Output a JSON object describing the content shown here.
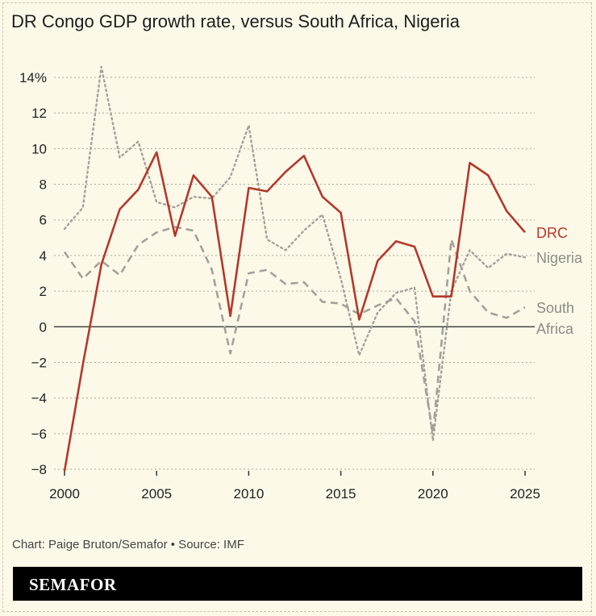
{
  "chart_data": {
    "type": "line",
    "title": "DR Congo GDP growth rate, versus South Africa, Nigeria",
    "xlabel": "",
    "ylabel": "",
    "xlim": [
      2000,
      2025
    ],
    "ylim": [
      -8,
      14
    ],
    "y_ticks": [
      {
        "v": 14,
        "label": "14%"
      },
      {
        "v": 12,
        "label": "12"
      },
      {
        "v": 10,
        "label": "10"
      },
      {
        "v": 8,
        "label": "8"
      },
      {
        "v": 6,
        "label": "6"
      },
      {
        "v": 4,
        "label": "4"
      },
      {
        "v": 2,
        "label": "2"
      },
      {
        "v": 0,
        "label": "0"
      },
      {
        "v": -2,
        "label": "−2"
      },
      {
        "v": -4,
        "label": "−4"
      },
      {
        "v": -6,
        "label": "−6"
      },
      {
        "v": -8,
        "label": "−8"
      }
    ],
    "x_ticks": [
      {
        "v": 2000,
        "label": "2000"
      },
      {
        "v": 2005,
        "label": "2005"
      },
      {
        "v": 2010,
        "label": "2010"
      },
      {
        "v": 2015,
        "label": "2015"
      },
      {
        "v": 2020,
        "label": "2020"
      },
      {
        "v": 2025,
        "label": "2025"
      }
    ],
    "grid": true,
    "x": [
      2000,
      2001,
      2002,
      2003,
      2004,
      2005,
      2006,
      2007,
      2008,
      2009,
      2010,
      2011,
      2012,
      2013,
      2014,
      2015,
      2016,
      2017,
      2018,
      2019,
      2020,
      2021,
      2022,
      2023,
      2024,
      2025
    ],
    "series": [
      {
        "name": "DRC",
        "label_lines": [
          "DRC"
        ],
        "color": "#b3392a",
        "style": "solid",
        "values": [
          -8.1,
          -2.1,
          3.5,
          6.6,
          7.7,
          9.8,
          5.1,
          8.5,
          7.3,
          0.6,
          7.8,
          7.6,
          8.7,
          9.6,
          7.3,
          6.4,
          0.4,
          3.7,
          4.8,
          4.5,
          1.7,
          1.7,
          9.2,
          8.5,
          6.5,
          5.3
        ]
      },
      {
        "name": "Nigeria",
        "label_lines": [
          "Nigeria"
        ],
        "color": "#a3a19a",
        "style": "dotted",
        "values": [
          5.5,
          6.7,
          14.6,
          9.5,
          10.4,
          7.0,
          6.7,
          7.3,
          7.2,
          8.4,
          11.3,
          4.9,
          4.3,
          5.4,
          6.3,
          2.7,
          -1.6,
          0.8,
          1.9,
          2.2,
          -6.4,
          2.0,
          4.3,
          3.3,
          4.1,
          3.9
        ]
      },
      {
        "name": "South Africa",
        "label_lines": [
          "South",
          "Africa"
        ],
        "color": "#a3a19a",
        "style": "dashed",
        "values": [
          4.2,
          2.7,
          3.7,
          2.9,
          4.6,
          5.3,
          5.6,
          5.4,
          3.2,
          -1.5,
          3.0,
          3.2,
          2.4,
          2.5,
          1.4,
          1.3,
          0.7,
          1.2,
          1.6,
          0.3,
          -6.0,
          4.9,
          2.0,
          0.8,
          0.5,
          1.1
        ]
      }
    ]
  },
  "footer": {
    "credit": "Chart: Paige Bruton/Semafor • Source: IMF",
    "brand": "SEMAFOR"
  }
}
